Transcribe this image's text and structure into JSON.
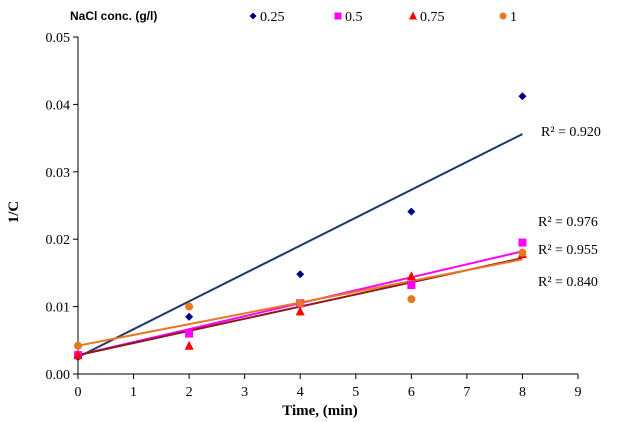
{
  "chart_data": {
    "type": "scatter",
    "title": "",
    "xlabel": "Time, (min)",
    "ylabel": "1/C",
    "xlim": [
      0,
      9
    ],
    "ylim": [
      0,
      0.05
    ],
    "x_ticks": [
      "0",
      "1",
      "2",
      "3",
      "4",
      "5",
      "6",
      "7",
      "8",
      "9"
    ],
    "y_ticks": [
      "0.00",
      "0.01",
      "0.02",
      "0.03",
      "0.04",
      "0.05"
    ],
    "grid": false,
    "legend": {
      "title": "NaCl conc. (g/l)",
      "placement": "top"
    },
    "series": [
      {
        "name": "0.25",
        "marker": "diamond",
        "color": "#000080",
        "trend_color": "#1F3864",
        "x": [
          0,
          2,
          4,
          6,
          8
        ],
        "y": [
          0.0025,
          0.0085,
          0.0148,
          0.0241,
          0.0412
        ],
        "trendline": {
          "start": [
            0,
            0.0025
          ],
          "end": [
            8,
            0.0356
          ]
        },
        "r2_label": "R² = 0.920"
      },
      {
        "name": "0.5",
        "marker": "square",
        "color": "#FF00FF",
        "trend_color": "#FF00FF",
        "x": [
          0,
          2,
          4,
          6,
          8
        ],
        "y": [
          0.0028,
          0.006,
          0.0105,
          0.0132,
          0.0195
        ],
        "trendline": {
          "start": [
            0,
            0.0028
          ],
          "end": [
            8,
            0.0182
          ]
        },
        "r2_label": "R² = 0.976"
      },
      {
        "name": "0.75",
        "marker": "triangle",
        "color": "#FF0000",
        "trend_color": "#8B1A1A",
        "x": [
          0,
          2,
          4,
          6,
          8
        ],
        "y": [
          0.0028,
          0.0042,
          0.0093,
          0.0145,
          0.0178
        ],
        "trendline": {
          "start": [
            0,
            0.0028
          ],
          "end": [
            8,
            0.0172
          ]
        },
        "r2_label": "R² = 0.955"
      },
      {
        "name": "1",
        "marker": "circle",
        "color": "#E87722",
        "trend_color": "#E87722",
        "x": [
          0,
          2,
          4,
          6,
          8
        ],
        "y": [
          0.0042,
          0.01,
          0.0105,
          0.0111,
          0.018
        ],
        "trendline": {
          "start": [
            0,
            0.0042
          ],
          "end": [
            8,
            0.017
          ]
        },
        "r2_label": "R² = 0.840"
      }
    ]
  }
}
